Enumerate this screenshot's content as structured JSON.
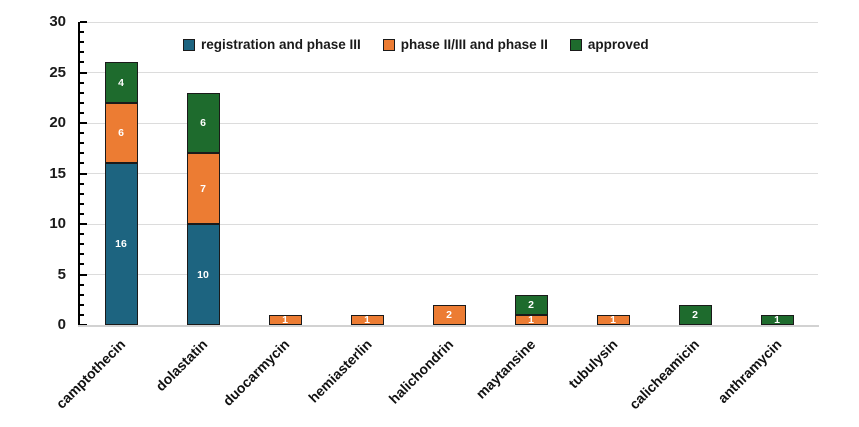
{
  "chart_data": {
    "type": "bar",
    "stacked": true,
    "title": "",
    "xlabel": "",
    "ylabel": "",
    "categories": [
      "camptothecin",
      "dolastatin",
      "duocarmycin",
      "hemiasterlin",
      "halichondrin",
      "maytansine",
      "tubulysin",
      "calicheamicin",
      "anthramycin"
    ],
    "series": [
      {
        "name": "registration and phase III",
        "color": "#1d6480",
        "values": [
          16,
          10,
          0,
          0,
          0,
          0,
          0,
          0,
          0
        ]
      },
      {
        "name": "phase II/III and phase II",
        "color": "#ec7c33",
        "values": [
          6,
          7,
          1,
          1,
          2,
          1,
          1,
          0,
          0
        ]
      },
      {
        "name": "approved",
        "color": "#1e6b2d",
        "values": [
          4,
          6,
          0,
          0,
          0,
          2,
          0,
          2,
          1
        ]
      }
    ],
    "totals": [
      26,
      23,
      1,
      1,
      2,
      3,
      1,
      2,
      1
    ],
    "ylim": [
      0,
      30
    ],
    "y_major_ticks": [
      0,
      5,
      10,
      15,
      20,
      25,
      30
    ],
    "y_minor_step": 1,
    "grid": "horizontal lines at major ticks",
    "legend_position": "top inside",
    "data_labels": "white bold numbers inside segments, shown when value > 0"
  },
  "colors": {
    "background": "#ffffff",
    "gridline": "#dcdcdc",
    "axis_spine": "#000000",
    "baseline": "#d2d2d2",
    "bar_border": "#1a1a1a",
    "segment_label": "#ffffff",
    "text": "#1a1a1a"
  }
}
